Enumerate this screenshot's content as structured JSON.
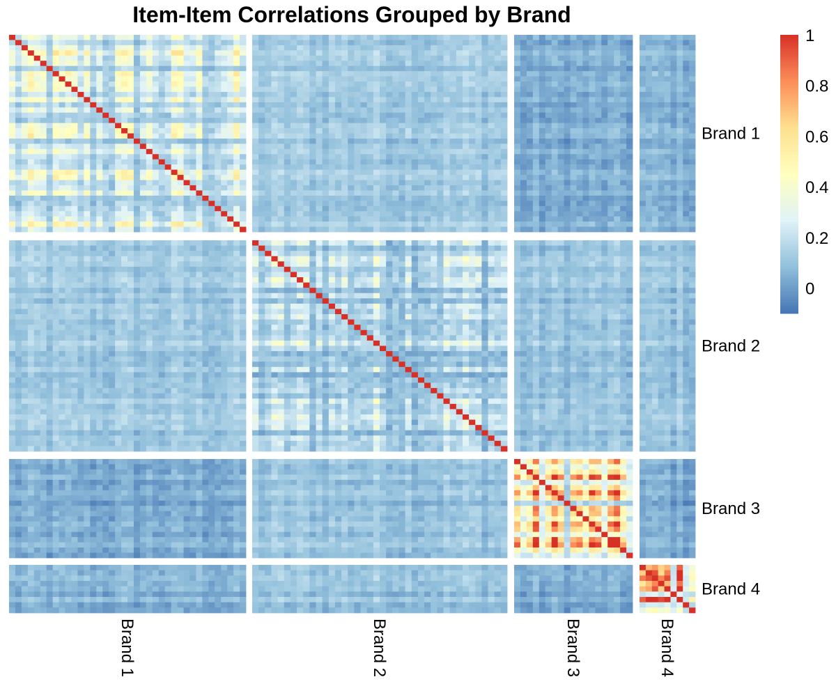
{
  "chart_data": {
    "type": "heatmap",
    "title": "Item-Item Correlations Grouped by Brand",
    "groups": [
      "Brand 1",
      "Brand 2",
      "Brand 3",
      "Brand 4"
    ],
    "items_per_group": [
      38,
      40,
      19,
      9
    ],
    "row_labels": [
      "Brand 1",
      "Brand 2",
      "Brand 3",
      "Brand 4"
    ],
    "col_labels": [
      "Brand 1",
      "Brand 2",
      "Brand 3",
      "Brand 4"
    ],
    "block_mean_correlation": [
      [
        0.25,
        0.12,
        0.03,
        0.05
      ],
      [
        0.12,
        0.2,
        0.1,
        0.1
      ],
      [
        0.03,
        0.1,
        0.5,
        0.03
      ],
      [
        0.05,
        0.1,
        0.03,
        0.6
      ]
    ],
    "diagonal_value": 1,
    "colorbar": {
      "min": -0.1,
      "max": 1,
      "ticks": [
        0,
        0.2,
        0.4,
        0.6,
        0.8,
        1
      ],
      "tick_labels": [
        "0",
        "0.2",
        "0.4",
        "0.6",
        "0.8",
        "1"
      ],
      "colors": [
        "#4575b4",
        "#91bfdb",
        "#e0f3f8",
        "#ffffbf",
        "#fee090",
        "#fc8d59",
        "#d73027"
      ]
    },
    "legend_position": "right"
  }
}
